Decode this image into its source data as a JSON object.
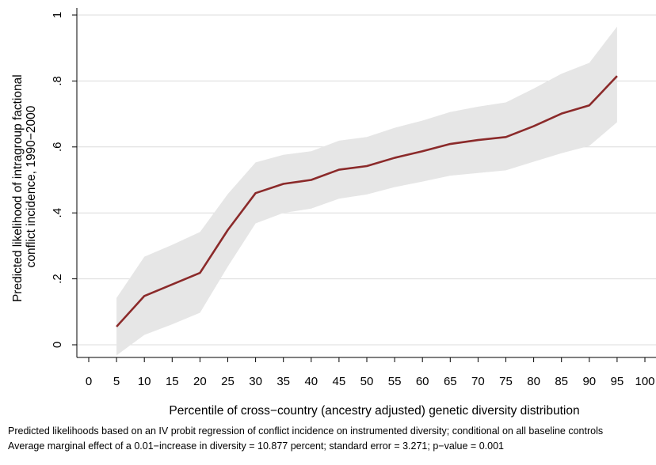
{
  "chart_data": {
    "type": "line",
    "title": "",
    "xlabel": "Percentile of cross−country (ancestry adjusted) genetic diversity distribution",
    "ylabel_lines": [
      "Predicted likelihood of intragroup factional",
      "conflict incidence, 1990−2000"
    ],
    "x_ticks": [
      0,
      5,
      10,
      15,
      20,
      25,
      30,
      35,
      40,
      45,
      50,
      55,
      60,
      65,
      70,
      75,
      80,
      85,
      90,
      95,
      100
    ],
    "y_ticks": [
      0,
      0.2,
      0.4,
      0.6,
      0.8,
      1
    ],
    "y_tick_labels": [
      "0",
      ".2",
      ".4",
      ".6",
      ".8",
      "1"
    ],
    "xlim": [
      0,
      100
    ],
    "ylim": [
      0,
      1
    ],
    "grid": true,
    "colors": {
      "line": "#8b2a2a",
      "band": "#e6e6e6",
      "grid": "#dcdcdc",
      "axis": "#000000"
    },
    "series": [
      {
        "x": [
          5,
          10,
          15,
          20,
          25,
          30,
          35,
          40,
          45,
          50,
          55,
          60,
          65,
          70,
          75,
          80,
          85,
          90,
          95
        ],
        "y": [
          0.055,
          0.148,
          0.183,
          0.218,
          0.348,
          0.46,
          0.488,
          0.5,
          0.531,
          0.542,
          0.567,
          0.587,
          0.609,
          0.621,
          0.63,
          0.663,
          0.701,
          0.726,
          0.815
        ],
        "lower": [
          -0.032,
          0.03,
          0.062,
          0.097,
          0.237,
          0.368,
          0.4,
          0.413,
          0.443,
          0.456,
          0.478,
          0.495,
          0.513,
          0.521,
          0.529,
          0.555,
          0.581,
          0.603,
          0.675
        ],
        "upper": [
          0.142,
          0.267,
          0.303,
          0.342,
          0.457,
          0.553,
          0.576,
          0.587,
          0.619,
          0.63,
          0.658,
          0.68,
          0.706,
          0.722,
          0.735,
          0.777,
          0.822,
          0.855,
          0.965
        ]
      }
    ]
  },
  "notes": {
    "line1": "Predicted likelihoods based on an IV probit regression of conflict incidence on instrumented diversity; conditional on all baseline controls",
    "line2": "Average marginal effect of a 0.01−increase in diversity = 10.877 percent; standard error = 3.271; p−value = 0.001"
  }
}
